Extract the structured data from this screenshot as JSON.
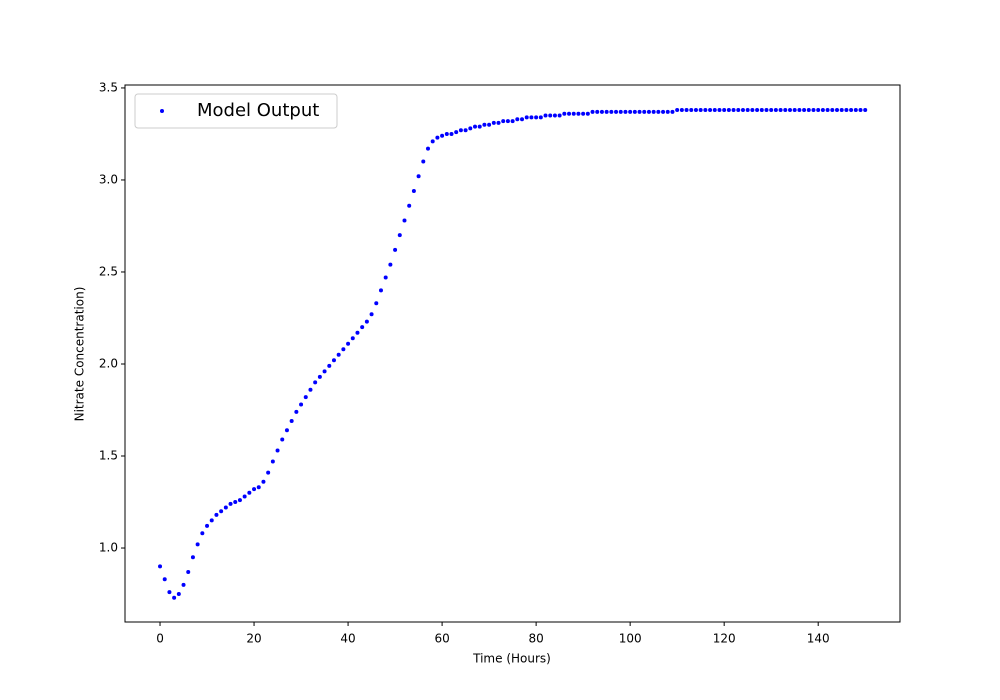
{
  "chart_data": {
    "type": "scatter",
    "x_label": "Time (Hours)",
    "y_label": "Nitrate Concentration)",
    "x": [
      0,
      1,
      2,
      3,
      4,
      5,
      6,
      7,
      8,
      9,
      10,
      11,
      12,
      13,
      14,
      15,
      16,
      17,
      18,
      19,
      20,
      21,
      22,
      23,
      24,
      25,
      26,
      27,
      28,
      29,
      30,
      31,
      32,
      33,
      34,
      35,
      36,
      37,
      38,
      39,
      40,
      41,
      42,
      43,
      44,
      45,
      46,
      47,
      48,
      49,
      50,
      51,
      52,
      53,
      54,
      55,
      56,
      57,
      58,
      59,
      60,
      61,
      62,
      63,
      64,
      65,
      66,
      67,
      68,
      69,
      70,
      71,
      72,
      73,
      74,
      75,
      76,
      77,
      78,
      79,
      80,
      81,
      82,
      83,
      84,
      85,
      86,
      87,
      88,
      89,
      90,
      91,
      92,
      93,
      94,
      95,
      96,
      97,
      98,
      99,
      100,
      101,
      102,
      103,
      104,
      105,
      106,
      107,
      108,
      109,
      110,
      111,
      112,
      113,
      114,
      115,
      116,
      117,
      118,
      119,
      120,
      121,
      122,
      123,
      124,
      125,
      126,
      127,
      128,
      129,
      130,
      131,
      132,
      133,
      134,
      135,
      136,
      137,
      138,
      139,
      140,
      141,
      142,
      143,
      144,
      145,
      146,
      147,
      148,
      149,
      150
    ],
    "series": [
      {
        "name": "Model Output",
        "color": "#0000ff",
        "values": [
          0.9,
          0.83,
          0.76,
          0.73,
          0.75,
          0.8,
          0.87,
          0.95,
          1.02,
          1.08,
          1.12,
          1.15,
          1.18,
          1.2,
          1.22,
          1.24,
          1.25,
          1.26,
          1.28,
          1.3,
          1.32,
          1.33,
          1.36,
          1.41,
          1.47,
          1.53,
          1.59,
          1.64,
          1.69,
          1.74,
          1.78,
          1.82,
          1.86,
          1.9,
          1.93,
          1.96,
          1.99,
          2.02,
          2.05,
          2.08,
          2.11,
          2.14,
          2.17,
          2.2,
          2.23,
          2.27,
          2.33,
          2.4,
          2.47,
          2.54,
          2.62,
          2.7,
          2.78,
          2.86,
          2.94,
          3.02,
          3.1,
          3.17,
          3.21,
          3.23,
          3.24,
          3.25,
          3.25,
          3.26,
          3.27,
          3.27,
          3.28,
          3.29,
          3.29,
          3.3,
          3.3,
          3.31,
          3.31,
          3.32,
          3.32,
          3.32,
          3.33,
          3.33,
          3.34,
          3.34,
          3.34,
          3.34,
          3.35,
          3.35,
          3.35,
          3.35,
          3.36,
          3.36,
          3.36,
          3.36,
          3.36,
          3.36,
          3.37,
          3.37,
          3.37,
          3.37,
          3.37,
          3.37,
          3.37,
          3.37,
          3.37,
          3.37,
          3.37,
          3.37,
          3.37,
          3.37,
          3.37,
          3.37,
          3.37,
          3.37,
          3.38,
          3.38,
          3.38,
          3.38,
          3.38,
          3.38,
          3.38,
          3.38,
          3.38,
          3.38,
          3.38,
          3.38,
          3.38,
          3.38,
          3.38,
          3.38,
          3.38,
          3.38,
          3.38,
          3.38,
          3.38,
          3.38,
          3.38,
          3.38,
          3.38,
          3.38,
          3.38,
          3.38,
          3.38,
          3.38,
          3.38,
          3.38,
          3.38,
          3.38,
          3.38,
          3.38,
          3.38,
          3.38,
          3.38,
          3.38,
          3.38
        ]
      }
    ],
    "xlim": [
      -7.45,
      157.4
    ],
    "xticks": [
      0,
      20,
      40,
      60,
      80,
      100,
      120,
      140
    ],
    "ylim": [
      0.598,
      3.516
    ],
    "yticks": [
      {
        "value": 1,
        "label": "1.0"
      },
      1.5,
      {
        "value": 2,
        "label": "2.0"
      },
      2.5,
      {
        "value": 3,
        "label": "3.0"
      },
      3.5
    ],
    "legend": "upper left"
  }
}
